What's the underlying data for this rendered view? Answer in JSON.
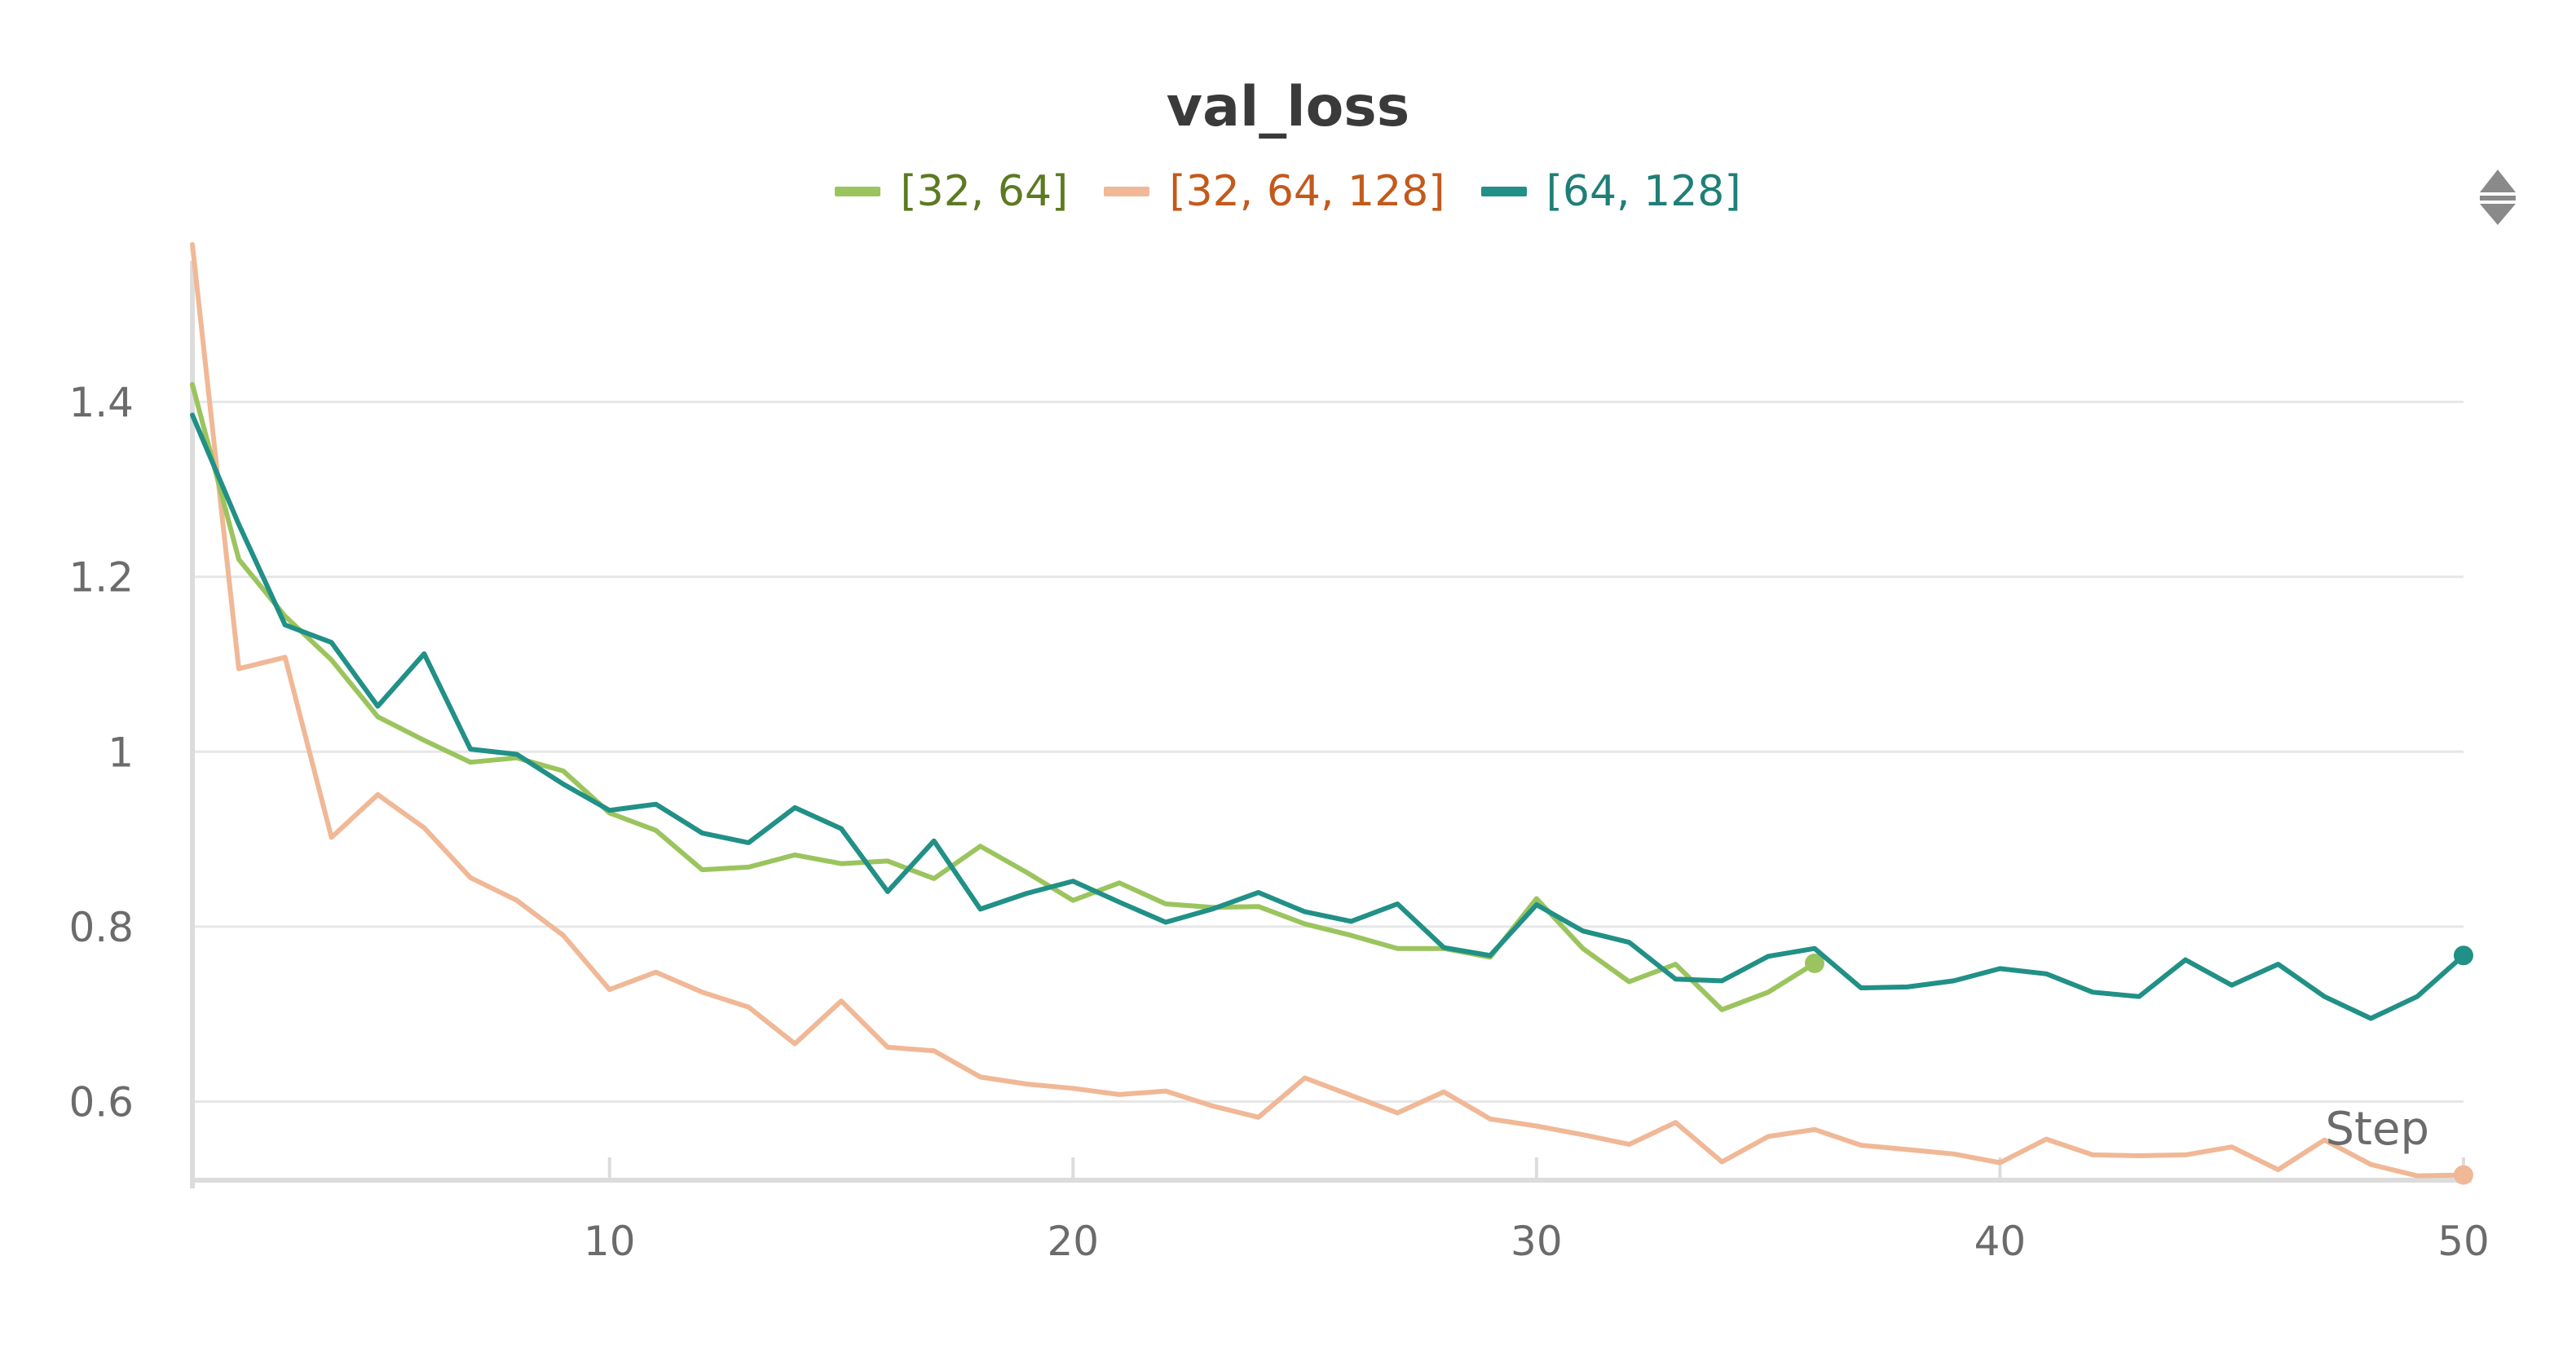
{
  "chart_data": {
    "type": "line",
    "title": "val_loss",
    "xlabel": "Step",
    "ylabel": "",
    "xlim": [
      1,
      50
    ],
    "ylim": [
      0.51,
      1.58
    ],
    "grid": true,
    "legend_position": "top-center",
    "x_ticks": [
      {
        "value": 10,
        "label": "10"
      },
      {
        "value": 20,
        "label": "20"
      },
      {
        "value": 30,
        "label": "30"
      },
      {
        "value": 40,
        "label": "40"
      },
      {
        "value": 50,
        "label": "50"
      }
    ],
    "y_ticks": [
      {
        "value": 0.6,
        "label": "0.6"
      },
      {
        "value": 0.8,
        "label": "0.8"
      },
      {
        "value": 1.0,
        "label": "1"
      },
      {
        "value": 1.2,
        "label": "1.2"
      },
      {
        "value": 1.4,
        "label": "1.4"
      }
    ],
    "series": [
      {
        "name": "[32, 64]",
        "color": "#9bc45e",
        "text_color": "#5c7a22",
        "end_marker": true,
        "x": [
          1,
          2,
          3,
          4,
          5,
          6,
          7,
          8,
          9,
          10,
          11,
          12,
          13,
          14,
          15,
          16,
          17,
          18,
          19,
          20,
          21,
          22,
          23,
          24,
          25,
          26,
          27,
          28,
          29,
          30,
          31,
          32,
          33,
          34,
          35,
          36
        ],
        "y": [
          1.42,
          1.22,
          1.155,
          1.105,
          1.04,
          1.013,
          0.988,
          0.993,
          0.978,
          0.93,
          0.91,
          0.865,
          0.868,
          0.882,
          0.872,
          0.875,
          0.855,
          0.892,
          0.862,
          0.83,
          0.85,
          0.826,
          0.822,
          0.823,
          0.803,
          0.79,
          0.775,
          0.775,
          0.765,
          0.832,
          0.775,
          0.737,
          0.757,
          0.705,
          0.725,
          0.758
        ]
      },
      {
        "name": "[32, 64, 128]",
        "color": "#f0b896",
        "text_color": "#c25a1c",
        "end_marker": true,
        "x": [
          1,
          2,
          3,
          4,
          5,
          6,
          7,
          8,
          9,
          10,
          11,
          12,
          13,
          14,
          15,
          16,
          17,
          18,
          19,
          20,
          21,
          22,
          23,
          24,
          25,
          26,
          27,
          28,
          29,
          30,
          31,
          32,
          33,
          34,
          35,
          36,
          37,
          38,
          39,
          40,
          41,
          42,
          43,
          44,
          45,
          46,
          47,
          48,
          49,
          50
        ],
        "y": [
          1.58,
          1.095,
          1.108,
          0.902,
          0.951,
          0.913,
          0.856,
          0.83,
          0.79,
          0.728,
          0.748,
          0.725,
          0.708,
          0.666,
          0.715,
          0.662,
          0.658,
          0.628,
          0.62,
          0.615,
          0.608,
          0.612,
          0.595,
          0.582,
          0.627,
          0.607,
          0.587,
          0.611,
          0.58,
          0.572,
          0.562,
          0.551,
          0.576,
          0.531,
          0.56,
          0.568,
          0.55,
          0.545,
          0.54,
          0.53,
          0.557,
          0.539,
          0.538,
          0.539,
          0.548,
          0.522,
          0.556,
          0.528,
          0.515,
          0.516
        ]
      },
      {
        "name": "[64, 128]",
        "color": "#219086",
        "text_color": "#1f7f77",
        "end_marker": true,
        "x": [
          1,
          2,
          3,
          4,
          5,
          6,
          7,
          8,
          9,
          10,
          11,
          12,
          13,
          14,
          15,
          16,
          17,
          18,
          19,
          20,
          21,
          22,
          23,
          24,
          25,
          26,
          27,
          28,
          29,
          30,
          31,
          32,
          33,
          34,
          35,
          36,
          37,
          38,
          39,
          40,
          41,
          42,
          43,
          44,
          45,
          46,
          47,
          48,
          49,
          50
        ],
        "y": [
          1.385,
          1.26,
          1.145,
          1.125,
          1.052,
          1.112,
          1.003,
          0.997,
          0.963,
          0.933,
          0.94,
          0.907,
          0.896,
          0.936,
          0.912,
          0.84,
          0.898,
          0.82,
          0.838,
          0.852,
          0.828,
          0.805,
          0.82,
          0.839,
          0.817,
          0.806,
          0.826,
          0.776,
          0.767,
          0.825,
          0.795,
          0.782,
          0.74,
          0.738,
          0.766,
          0.775,
          0.73,
          0.731,
          0.738,
          0.752,
          0.746,
          0.725,
          0.72,
          0.762,
          0.733,
          0.757,
          0.72,
          0.695,
          0.72,
          0.767
        ]
      }
    ]
  }
}
